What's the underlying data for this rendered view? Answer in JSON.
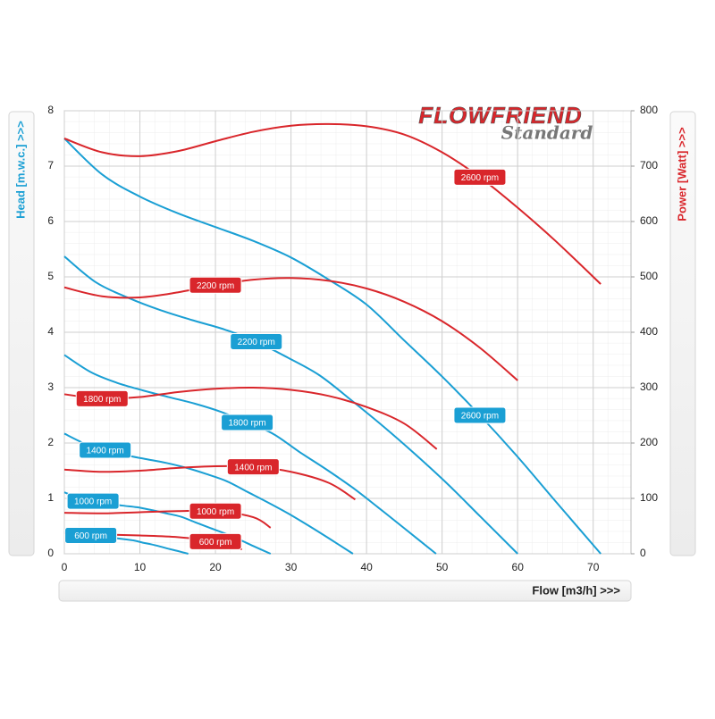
{
  "logo": {
    "brand": "FLOWFRIEND",
    "edition": "Standard"
  },
  "chart_data": {
    "type": "line",
    "xlabel": "Flow [m3/h] >>>",
    "ylabel": "Head [m.w.c.] >>>",
    "y2label": "Power [Watt] >>>",
    "xlim": [
      0,
      75
    ],
    "ylim": [
      0,
      8
    ],
    "y2lim": [
      0,
      800
    ],
    "xticks": [
      0,
      10,
      20,
      30,
      40,
      50,
      60,
      70
    ],
    "yticks": [
      0,
      1,
      2,
      3,
      4,
      5,
      6,
      7,
      8
    ],
    "y2ticks": [
      0,
      100,
      200,
      300,
      400,
      500,
      600,
      700,
      800
    ],
    "grid": true,
    "series": [
      {
        "name": "2600 rpm",
        "color": "#1a9fd4",
        "axis": "y",
        "x": [
          0,
          5,
          10,
          15,
          20,
          25,
          30,
          35,
          40,
          45,
          50,
          55,
          60,
          65,
          71
        ],
        "values": [
          7.5,
          6.85,
          6.45,
          6.15,
          5.9,
          5.65,
          5.35,
          4.95,
          4.5,
          3.85,
          3.2,
          2.5,
          1.75,
          0.95,
          0
        ]
      },
      {
        "name": "2200 rpm",
        "color": "#1a9fd4",
        "axis": "y",
        "x": [
          0,
          4.2,
          8.5,
          12.7,
          16.9,
          21.2,
          25.4,
          29.6,
          33.8,
          38.1,
          42.3,
          46.5,
          50.8,
          55,
          60
        ],
        "values": [
          5.37,
          4.9,
          4.62,
          4.4,
          4.22,
          4.05,
          3.83,
          3.54,
          3.22,
          2.76,
          2.29,
          1.79,
          1.25,
          0.68,
          0
        ]
      },
      {
        "name": "1800 rpm",
        "color": "#1a9fd4",
        "axis": "y",
        "x": [
          0,
          3.5,
          6.9,
          10.4,
          13.8,
          17.3,
          20.8,
          24.2,
          27.7,
          31.1,
          34.6,
          38.1,
          41.5,
          45,
          49.2
        ],
        "values": [
          3.59,
          3.28,
          3.09,
          2.95,
          2.83,
          2.71,
          2.56,
          2.37,
          2.16,
          1.84,
          1.53,
          1.2,
          0.84,
          0.46,
          0
        ]
      },
      {
        "name": "1400 rpm",
        "color": "#1a9fd4",
        "axis": "y",
        "x": [
          0,
          2.7,
          5.4,
          8.1,
          10.8,
          13.5,
          16.2,
          18.8,
          21.5,
          24.2,
          26.9,
          29.6,
          32.3,
          35,
          38.2
        ],
        "values": [
          2.17,
          1.99,
          1.87,
          1.78,
          1.71,
          1.64,
          1.55,
          1.44,
          1.31,
          1.12,
          0.93,
          0.73,
          0.51,
          0.28,
          0
        ]
      },
      {
        "name": "1000 rpm",
        "color": "#1a9fd4",
        "axis": "y",
        "x": [
          0,
          1.9,
          3.8,
          5.8,
          7.7,
          9.6,
          11.5,
          13.5,
          15.4,
          17.3,
          19.2,
          21.2,
          23.1,
          25,
          27.3
        ],
        "values": [
          1.11,
          1.01,
          0.95,
          0.91,
          0.87,
          0.84,
          0.79,
          0.73,
          0.67,
          0.57,
          0.47,
          0.37,
          0.26,
          0.14,
          0
        ]
      },
      {
        "name": "600 rpm",
        "color": "#1a9fd4",
        "axis": "y",
        "x": [
          0,
          1.2,
          2.3,
          3.5,
          4.6,
          5.8,
          6.9,
          8.1,
          9.2,
          10.4,
          11.5,
          12.7,
          13.8,
          15,
          16.4
        ],
        "values": [
          0.4,
          0.36,
          0.34,
          0.33,
          0.31,
          0.3,
          0.28,
          0.26,
          0.24,
          0.2,
          0.17,
          0.13,
          0.09,
          0.05,
          0
        ]
      },
      {
        "name": "2600 rpm",
        "color": "#d9262b",
        "axis": "y2",
        "x": [
          0,
          5,
          10,
          15,
          20,
          25,
          30,
          35,
          40,
          45,
          50,
          55,
          60,
          65,
          71
        ],
        "values": [
          750,
          725,
          718,
          727,
          745,
          762,
          773,
          776,
          772,
          757,
          725,
          680,
          625,
          565,
          487
        ]
      },
      {
        "name": "2200 rpm",
        "color": "#d9262b",
        "axis": "y2",
        "x": [
          0,
          5,
          10,
          15,
          20,
          25,
          30,
          35,
          40,
          45,
          50,
          55,
          60
        ],
        "values": [
          481,
          465,
          463,
          472,
          485,
          495,
          498,
          493,
          479,
          455,
          420,
          372,
          313
        ]
      },
      {
        "name": "1800 rpm",
        "color": "#d9262b",
        "axis": "y2",
        "x": [
          0,
          5,
          10,
          15,
          20,
          25,
          30,
          35,
          40,
          45,
          49.3
        ],
        "values": [
          288,
          280,
          283,
          292,
          298,
          300,
          296,
          285,
          265,
          235,
          189
        ]
      },
      {
        "name": "1400 rpm",
        "color": "#d9262b",
        "axis": "y2",
        "x": [
          0,
          5,
          10,
          15,
          20,
          25,
          30,
          35,
          38.5
        ],
        "values": [
          152,
          148,
          150,
          155,
          158,
          157,
          148,
          128,
          98
        ]
      },
      {
        "name": "1000 rpm",
        "color": "#d9262b",
        "axis": "y2",
        "x": [
          0,
          5,
          10,
          15,
          20,
          25,
          27.3
        ],
        "values": [
          74,
          73,
          75,
          77,
          77,
          66,
          47
        ]
      },
      {
        "name": "600 rpm",
        "color": "#d9262b",
        "axis": "y2",
        "x": [
          0,
          5,
          10,
          15,
          20,
          23.5
        ],
        "values": [
          37,
          35,
          33,
          30,
          22,
          8
        ]
      }
    ]
  }
}
